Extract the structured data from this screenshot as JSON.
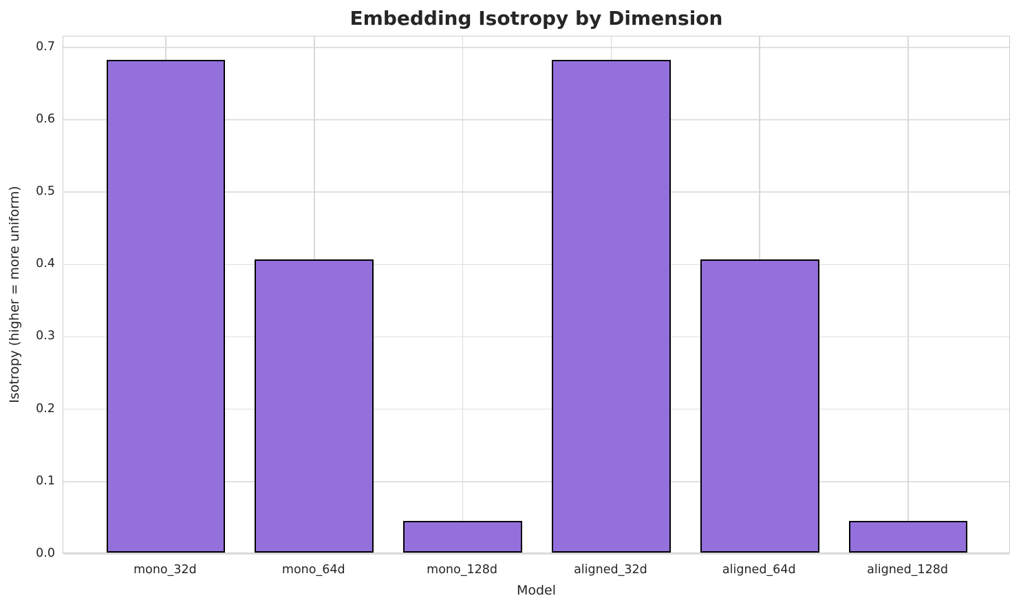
{
  "chart_data": {
    "type": "bar",
    "title": "Embedding Isotropy by Dimension",
    "xlabel": "Model",
    "ylabel": "Isotropy (higher = more uniform)",
    "categories": [
      "mono_32d",
      "mono_64d",
      "mono_128d",
      "aligned_32d",
      "aligned_64d",
      "aligned_128d"
    ],
    "values": [
      0.681,
      0.405,
      0.044,
      0.681,
      0.405,
      0.044
    ],
    "ylim": [
      0,
      0.715
    ],
    "xlim": [
      -0.69,
      5.69
    ],
    "yticks": [
      0.0,
      0.1,
      0.2,
      0.3,
      0.4,
      0.5,
      0.6,
      0.7
    ],
    "ytick_labels": [
      "0.0",
      "0.1",
      "0.2",
      "0.3",
      "0.4",
      "0.5",
      "0.6",
      "0.7"
    ],
    "bar_width_units": 0.8,
    "grid": "both",
    "legend": null,
    "colors": {
      "bar_fill": "#9370DB",
      "bar_edge": "#000000",
      "grid_h": "#e0e0e0",
      "grid_v": "#d9d9d9",
      "spine": "#cccccc",
      "text": "#262626",
      "background": "#ffffff"
    }
  }
}
